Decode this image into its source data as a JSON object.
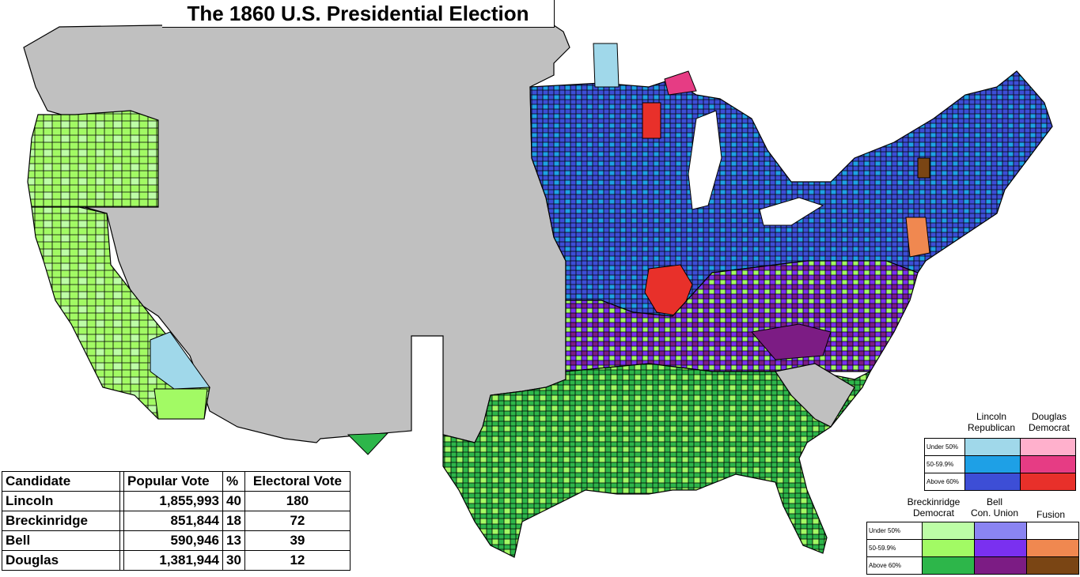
{
  "title": "The 1860 U.S. Presidential Election",
  "colors": {
    "background_ocean": "#ffffff",
    "no_data_gray": "#c0c0c0",
    "border": "#000000",
    "lincoln_under50": "#a0d8ea",
    "lincoln_50_60": "#1ea0e6",
    "lincoln_above60": "#3d4ed6",
    "douglas_under50": "#ffb0cc",
    "douglas_50_60": "#e63c84",
    "douglas_above60": "#e8302a",
    "breckinridge_under50": "#bdfda6",
    "breckinridge_50_60": "#a2fa64",
    "breckinridge_above60": "#2db64a",
    "bell_under50": "#8a84f2",
    "bell_50_60": "#7a30f0",
    "bell_above60": "#7c1c84",
    "fusion_under50": "#ffffff",
    "fusion_50_60": "#f08850",
    "fusion_above60": "#7a4514"
  },
  "results_table": {
    "headers": {
      "candidate": "Candidate",
      "popular_vote": "Popular Vote",
      "percent": "%",
      "electoral_vote": "Electoral Vote"
    },
    "rows": [
      {
        "candidate": "Lincoln",
        "popular_vote": "1,855,993",
        "percent": "40",
        "electoral_vote": "180"
      },
      {
        "candidate": "Breckinridge",
        "popular_vote": "851,844",
        "percent": "18",
        "electoral_vote": "72"
      },
      {
        "candidate": "Bell",
        "popular_vote": "590,946",
        "percent": "13",
        "electoral_vote": "39"
      },
      {
        "candidate": "Douglas",
        "popular_vote": "1,381,944",
        "percent": "30",
        "electoral_vote": "12"
      }
    ]
  },
  "legend_top": {
    "col1": "Lincoln\nRepublican",
    "col2": "Douglas\nDemocrat",
    "rows": [
      "Under 50%",
      "50-59.9%",
      "Above 60%"
    ]
  },
  "legend_bottom": {
    "col1": "Breckinridge\nDemocrat",
    "col2": "Bell\nCon. Union",
    "col3": "Fusion",
    "rows": [
      "Under 50%",
      "50-59.9%",
      "Above 60%"
    ]
  }
}
